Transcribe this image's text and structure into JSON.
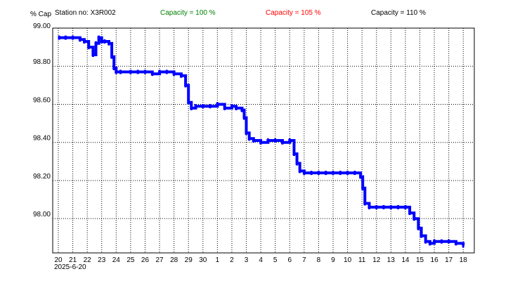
{
  "header": {
    "ylabel": "% Cap",
    "station": "Station no: X3R002",
    "capacity_100": "Capacity = 100 %",
    "capacity_105": "Capacity = 105 %",
    "capacity_110": "Capacity = 110 %"
  },
  "colors": {
    "series": "#0000ff",
    "capacity_100": "#008000",
    "capacity_105": "#ff0000",
    "capacity_110": "#000000",
    "grid": "#000000"
  },
  "chart_data": {
    "type": "line",
    "ylabel": "% Cap",
    "ylim": [
      97.82,
      99.0
    ],
    "xlim": [
      0,
      28.7
    ],
    "grid": true,
    "legend": "none",
    "date_label": "2025-6-20",
    "x_ticks": [
      {
        "pos": 0,
        "label": "20"
      },
      {
        "pos": 1,
        "label": "21"
      },
      {
        "pos": 2,
        "label": "22"
      },
      {
        "pos": 3,
        "label": "23"
      },
      {
        "pos": 4,
        "label": "24"
      },
      {
        "pos": 5,
        "label": "25"
      },
      {
        "pos": 6,
        "label": "26"
      },
      {
        "pos": 7,
        "label": "27"
      },
      {
        "pos": 8,
        "label": "28"
      },
      {
        "pos": 9,
        "label": "29"
      },
      {
        "pos": 10,
        "label": "30"
      },
      {
        "pos": 11,
        "label": "1"
      },
      {
        "pos": 12,
        "label": "2"
      },
      {
        "pos": 13,
        "label": "3"
      },
      {
        "pos": 14,
        "label": "4"
      },
      {
        "pos": 15,
        "label": "5"
      },
      {
        "pos": 16,
        "label": "6"
      },
      {
        "pos": 17,
        "label": "7"
      },
      {
        "pos": 18,
        "label": "8"
      },
      {
        "pos": 19,
        "label": "9"
      },
      {
        "pos": 20,
        "label": "10"
      },
      {
        "pos": 21,
        "label": "11"
      },
      {
        "pos": 22,
        "label": "12"
      },
      {
        "pos": 23,
        "label": "13"
      },
      {
        "pos": 24,
        "label": "14"
      },
      {
        "pos": 25,
        "label": "15"
      },
      {
        "pos": 26,
        "label": "16"
      },
      {
        "pos": 27,
        "label": "17"
      },
      {
        "pos": 28,
        "label": "18"
      }
    ],
    "y_ticks": [
      {
        "value": 99.0,
        "label": "99.00"
      },
      {
        "value": 98.8,
        "label": "98.80"
      },
      {
        "value": 98.6,
        "label": "98.60"
      },
      {
        "value": 98.4,
        "label": "98.40"
      },
      {
        "value": 98.2,
        "label": "98.20"
      },
      {
        "value": 98.0,
        "label": "98.00"
      }
    ],
    "series": [
      {
        "color": "#0000ff",
        "x": [
          0.05,
          0.5,
          1.0,
          1.5,
          1.8,
          2.1,
          2.4,
          2.6,
          2.8,
          3.0,
          3.2,
          3.5,
          3.7,
          3.85,
          4.0,
          4.3,
          5.0,
          5.5,
          6.0,
          6.5,
          7.0,
          7.5,
          8.0,
          8.5,
          8.8,
          9.0,
          9.2,
          9.5,
          10.0,
          10.5,
          11.0,
          11.5,
          12.0,
          12.3,
          12.7,
          12.85,
          13.0,
          13.2,
          13.5,
          14.0,
          14.5,
          15.0,
          15.5,
          16.0,
          16.3,
          16.5,
          16.7,
          17.0,
          17.5,
          18.0,
          18.5,
          19.0,
          19.5,
          20.0,
          20.5,
          20.9,
          21.05,
          21.2,
          21.5,
          22.0,
          22.5,
          23.0,
          23.5,
          24.0,
          24.3,
          24.6,
          24.9,
          25.1,
          25.4,
          25.7,
          26.0,
          26.5,
          27.0,
          27.5,
          28.0
        ],
        "y": [
          98.95,
          98.95,
          98.95,
          98.94,
          98.93,
          98.9,
          98.86,
          98.92,
          98.95,
          98.93,
          98.93,
          98.92,
          98.85,
          98.79,
          98.77,
          98.77,
          98.77,
          98.77,
          98.77,
          98.76,
          98.77,
          98.77,
          98.76,
          98.75,
          98.7,
          98.61,
          98.58,
          98.59,
          98.59,
          98.59,
          98.6,
          98.58,
          98.59,
          98.58,
          98.57,
          98.53,
          98.45,
          98.42,
          98.41,
          98.4,
          98.41,
          98.41,
          98.4,
          98.41,
          98.34,
          98.29,
          98.25,
          98.24,
          98.24,
          98.24,
          98.24,
          98.24,
          98.24,
          98.24,
          98.24,
          98.22,
          98.16,
          98.08,
          98.06,
          98.06,
          98.06,
          98.06,
          98.06,
          98.06,
          98.03,
          98.0,
          97.95,
          97.91,
          97.88,
          97.87,
          97.88,
          97.88,
          97.88,
          97.87,
          97.86
        ]
      }
    ]
  }
}
